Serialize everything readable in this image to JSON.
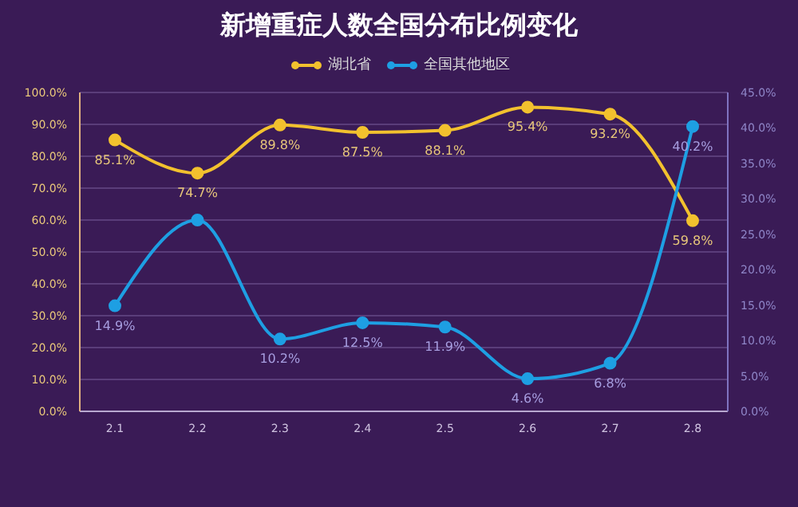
{
  "chart_data": {
    "type": "line",
    "title": "新增重症人数全国分布比例变化",
    "categories": [
      "2.1",
      "2.2",
      "2.3",
      "2.4",
      "2.5",
      "2.6",
      "2.7",
      "2.8"
    ],
    "series": [
      {
        "name": "湖北省",
        "color": "#f2c12e",
        "values": [
          85.1,
          74.7,
          89.8,
          87.5,
          88.1,
          95.4,
          93.2,
          59.8
        ],
        "value_labels": [
          "85.1%",
          "74.7%",
          "89.8%",
          "87.5%",
          "88.1%",
          "95.4%",
          "93.2%",
          "59.8%"
        ]
      },
      {
        "name": "全国其他地区",
        "color": "#1e9fe3",
        "axis": "y2",
        "values": [
          14.9,
          27,
          10.2,
          12.5,
          11.9,
          4.6,
          6.8,
          40.2
        ],
        "value_labels": [
          "14.9%",
          null,
          "10.2%",
          "12.5%",
          "11.9%",
          "4.6%",
          "6.8%",
          "40.2%"
        ]
      }
    ],
    "ylim": [
      0,
      100
    ],
    "yticks": [
      {
        "value": 0,
        "label": "0.0%"
      },
      {
        "value": 10,
        "label": "10.0%"
      },
      {
        "value": 20,
        "label": "20.0%"
      },
      {
        "value": 30,
        "label": "30.0%"
      },
      {
        "value": 40,
        "label": "40.0%"
      },
      {
        "value": 50,
        "label": "50.0%"
      },
      {
        "value": 60,
        "label": "60.0%"
      },
      {
        "value": 70,
        "label": "70.0%"
      },
      {
        "value": 80,
        "label": "80.0%"
      },
      {
        "value": 90,
        "label": "90.0%"
      },
      {
        "value": 100,
        "label": "100.0%"
      }
    ],
    "y2lim": [
      0,
      45
    ],
    "y2ticks": [
      {
        "value": 0,
        "label": "0.0%"
      },
      {
        "value": 5,
        "label": "5.0%"
      },
      {
        "value": 10,
        "label": "10.0%"
      },
      {
        "value": 15,
        "label": "15.0%"
      },
      {
        "value": 20,
        "label": "20.0%"
      },
      {
        "value": 25,
        "label": "25.0%"
      },
      {
        "value": 30,
        "label": "30.0%"
      },
      {
        "value": 35,
        "label": "35.0%"
      },
      {
        "value": 40,
        "label": "40.0%"
      },
      {
        "value": 45,
        "label": "45.0%"
      }
    ],
    "grid": "y",
    "legend": "top",
    "marker": "circle",
    "line_style": "solid"
  }
}
